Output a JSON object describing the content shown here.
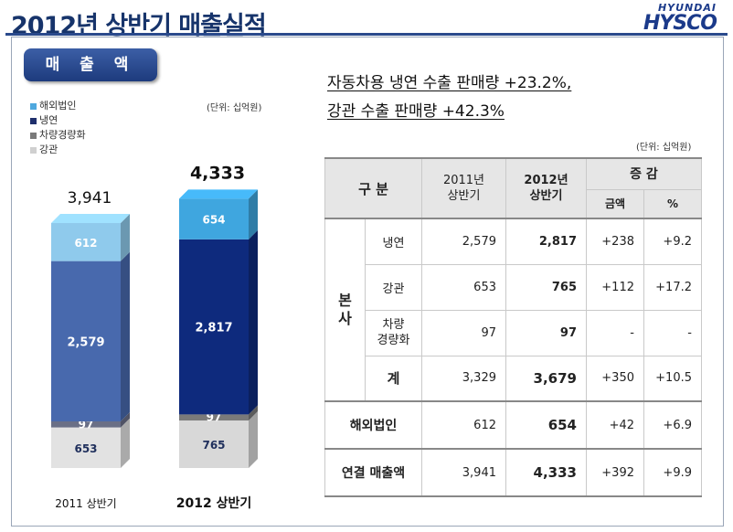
{
  "page": {
    "title": "2012년 상반기 매출실적",
    "logo_top": "HYUNDAI",
    "logo_bottom": "HYSCO",
    "badge": "매 출 액",
    "headline_1": "자동차용 냉연 수출 판매량 +23.2%,",
    "headline_2": "강관 수출 판매량 +42.3%",
    "chart_unit": "(단위: 십억원)",
    "table_unit": "(단위: 십억원)"
  },
  "chart_data": {
    "type": "bar",
    "stacked": true,
    "categories": [
      "2011 상반기",
      "2012 상반기"
    ],
    "totals": [
      "3,941",
      "4,333"
    ],
    "series": [
      {
        "name": "강관",
        "values": [
          653,
          765
        ],
        "color": "#dcdcdc",
        "text_color": "#1f2f5c"
      },
      {
        "name": "차량경량화",
        "values": [
          97,
          97
        ],
        "color": "#7a7a7a",
        "text_color": "#ffffff"
      },
      {
        "name": "냉연",
        "values": [
          2579,
          2817
        ],
        "color": "#2f4a9c",
        "text_color": "#ffffff"
      },
      {
        "name": "해외법인",
        "values": [
          612,
          654
        ],
        "color": "#5fb1e0",
        "text_color": "#ffffff"
      }
    ],
    "legend_order": [
      "해외법인",
      "냉연",
      "차량경량화",
      "강관"
    ],
    "legend_colors": [
      "#4fa8de",
      "#1f2f6c",
      "#7a7a7a",
      "#d0d0d0"
    ],
    "bar_colors_2012": [
      "#d8d8d8",
      "#7a7a7a",
      "#0e2a7d",
      "#3fa6df"
    ],
    "bar_colors_2011": [
      "#e2e2e2",
      "#6a6f86",
      "#4869ad",
      "#8fcaec"
    ],
    "legend_placement": "top-left"
  },
  "table": {
    "head_gubun": "구 분",
    "head_2011": "2011년\n상반기",
    "head_2012": "2012년\n상반기",
    "head_change": "증 감",
    "head_amount": "금액",
    "head_pct": "%",
    "group_label": "본\n사",
    "rows": [
      {
        "label": "냉연",
        "v2011": "2,579",
        "v2012": "2,817",
        "amount": "+238",
        "pct": "+9.2"
      },
      {
        "label": "강관",
        "v2011": "653",
        "v2012": "765",
        "amount": "+112",
        "pct": "+17.2"
      },
      {
        "label": "차량\n경량화",
        "v2011": "97",
        "v2012": "97",
        "amount": "-",
        "pct": "-"
      }
    ],
    "subtotal": {
      "label": "계",
      "v2011": "3,329",
      "v2012": "3,679",
      "amount": "+350",
      "pct": "+10.5"
    },
    "overseas": {
      "label": "해외법인",
      "v2011": "612",
      "v2012": "654",
      "amount": "+42",
      "pct": "+6.9"
    },
    "consolidated": {
      "label": "연결 매출액",
      "v2011": "3,941",
      "v2012": "4,333",
      "amount": "+392",
      "pct": "+9.9"
    }
  }
}
